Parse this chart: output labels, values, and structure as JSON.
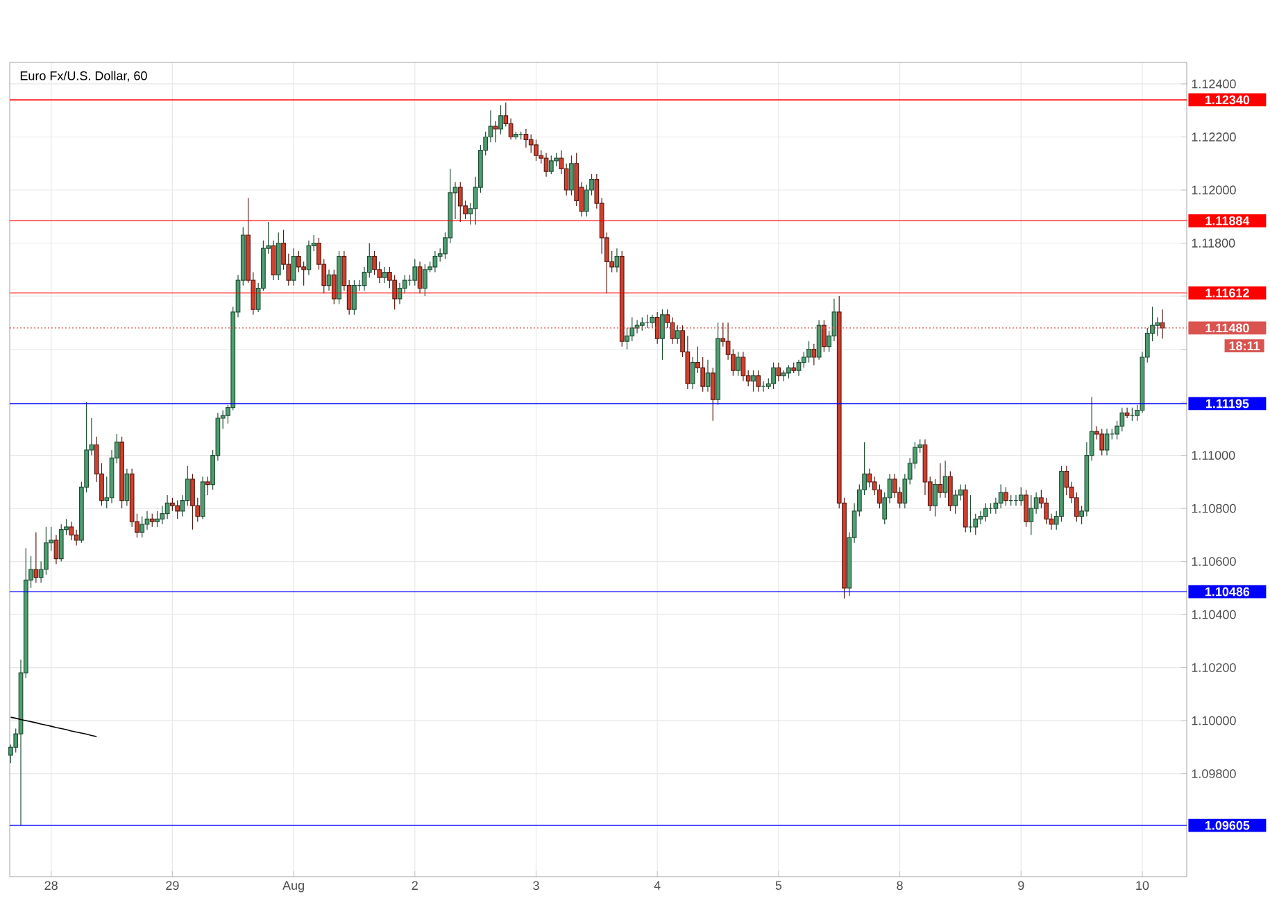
{
  "chart_data": {
    "type": "candlestick",
    "title": "Euro Fx/U.S. Dollar, 60",
    "categories": [
      null,
      null,
      null,
      null,
      null,
      null,
      null,
      null,
      "28",
      null,
      null,
      null,
      null,
      null,
      null,
      null,
      null,
      null,
      null,
      null,
      null,
      null,
      null,
      null,
      null,
      null,
      null,
      null,
      null,
      null,
      null,
      null,
      "29",
      null,
      null,
      null,
      null,
      null,
      null,
      null,
      null,
      null,
      null,
      null,
      null,
      null,
      null,
      null,
      null,
      null,
      null,
      null,
      null,
      null,
      null,
      null,
      "Aug",
      null,
      null,
      null,
      null,
      null,
      null,
      null,
      null,
      null,
      null,
      null,
      null,
      null,
      null,
      null,
      null,
      null,
      null,
      null,
      null,
      null,
      null,
      null,
      "2",
      null,
      null,
      null,
      null,
      null,
      null,
      null,
      null,
      null,
      null,
      null,
      null,
      null,
      null,
      null,
      null,
      null,
      null,
      null,
      null,
      null,
      null,
      null,
      "3",
      null,
      null,
      null,
      null,
      null,
      null,
      null,
      null,
      null,
      null,
      null,
      null,
      null,
      null,
      null,
      null,
      null,
      null,
      null,
      null,
      null,
      null,
      null,
      "4",
      null,
      null,
      null,
      null,
      null,
      null,
      null,
      null,
      null,
      null,
      null,
      null,
      null,
      null,
      null,
      null,
      null,
      null,
      null,
      null,
      null,
      null,
      null,
      "5",
      null,
      null,
      null,
      null,
      null,
      null,
      null,
      null,
      null,
      null,
      null,
      null,
      null,
      null,
      null,
      null,
      null,
      null,
      null,
      null,
      null,
      null,
      null,
      "8",
      null,
      null,
      null,
      null,
      null,
      null,
      null,
      null,
      null,
      null,
      null,
      null,
      null,
      null,
      null,
      null,
      null,
      null,
      null,
      null,
      null,
      null,
      null,
      "9",
      null,
      null,
      null,
      null,
      null,
      null,
      null,
      null,
      null,
      null,
      null,
      null,
      null,
      null,
      null,
      null,
      null,
      null,
      null,
      null,
      null,
      null,
      null,
      "10",
      null,
      null,
      null,
      null
    ],
    "ohlc": [
      [
        1.0987,
        1.0991,
        1.0984,
        1.099
      ],
      [
        1.099,
        1.0997,
        1.0988,
        1.0995
      ],
      [
        1.0995,
        1.1023,
        1.09605,
        1.1018
      ],
      [
        1.1018,
        1.1065,
        1.1016,
        1.1053
      ],
      [
        1.1053,
        1.1062,
        1.105,
        1.1057
      ],
      [
        1.1057,
        1.1071,
        1.1052,
        1.1054
      ],
      [
        1.1054,
        1.106,
        1.1052,
        1.1057
      ],
      [
        1.1057,
        1.1073,
        1.1055,
        1.1067
      ],
      [
        1.1067,
        1.1073,
        1.1064,
        1.1068
      ],
      [
        1.1068,
        1.107,
        1.1059,
        1.1061
      ],
      [
        1.1061,
        1.1074,
        1.106,
        1.1072
      ],
      [
        1.1072,
        1.1076,
        1.107,
        1.1073
      ],
      [
        1.1073,
        1.1075,
        1.1068,
        1.107
      ],
      [
        1.107,
        1.1072,
        1.1066,
        1.1068
      ],
      [
        1.1068,
        1.109,
        1.1067,
        1.1088
      ],
      [
        1.1088,
        1.112,
        1.1086,
        1.1102
      ],
      [
        1.1102,
        1.1114,
        1.11,
        1.1104
      ],
      [
        1.1104,
        1.1107,
        1.109,
        1.1093
      ],
      [
        1.1093,
        1.1097,
        1.1081,
        1.1083
      ],
      [
        1.1083,
        1.1092,
        1.108,
        1.1084
      ],
      [
        1.1084,
        1.1102,
        1.1082,
        1.1099
      ],
      [
        1.1099,
        1.1108,
        1.1097,
        1.1105
      ],
      [
        1.1105,
        1.1107,
        1.108,
        1.1083
      ],
      [
        1.1083,
        1.1095,
        1.1081,
        1.1093
      ],
      [
        1.1093,
        1.1095,
        1.1073,
        1.1075
      ],
      [
        1.1075,
        1.1078,
        1.1069,
        1.1071
      ],
      [
        1.1071,
        1.1077,
        1.1069,
        1.1074
      ],
      [
        1.1074,
        1.1079,
        1.1072,
        1.1076
      ],
      [
        1.1076,
        1.1078,
        1.1073,
        1.1075
      ],
      [
        1.1075,
        1.1079,
        1.1073,
        1.1076
      ],
      [
        1.1076,
        1.1081,
        1.1074,
        1.1078
      ],
      [
        1.1078,
        1.1085,
        1.1076,
        1.1082
      ],
      [
        1.1082,
        1.1084,
        1.1079,
        1.1081
      ],
      [
        1.1081,
        1.1083,
        1.1076,
        1.1079
      ],
      [
        1.1079,
        1.1085,
        1.1077,
        1.1083
      ],
      [
        1.1083,
        1.1096,
        1.1081,
        1.1091
      ],
      [
        1.1091,
        1.1093,
        1.1072,
        1.1081
      ],
      [
        1.1081,
        1.1084,
        1.1075,
        1.1077
      ],
      [
        1.1077,
        1.1092,
        1.1076,
        1.109
      ],
      [
        1.109,
        1.1092,
        1.1085,
        1.1089
      ],
      [
        1.1089,
        1.1102,
        1.1087,
        1.11
      ],
      [
        1.11,
        1.1116,
        1.1098,
        1.1114
      ],
      [
        1.1114,
        1.1117,
        1.111,
        1.1115
      ],
      [
        1.1115,
        1.1119,
        1.1112,
        1.1118
      ],
      [
        1.1118,
        1.1156,
        1.1117,
        1.1154
      ],
      [
        1.1154,
        1.1168,
        1.1152,
        1.1166
      ],
      [
        1.1166,
        1.1186,
        1.1164,
        1.1183
      ],
      [
        1.1183,
        1.1197,
        1.1165,
        1.1166
      ],
      [
        1.1166,
        1.1169,
        1.1153,
        1.1155
      ],
      [
        1.1155,
        1.1165,
        1.1154,
        1.1163
      ],
      [
        1.1163,
        1.1181,
        1.1162,
        1.1178
      ],
      [
        1.1178,
        1.1188,
        1.1176,
        1.1179
      ],
      [
        1.1179,
        1.1181,
        1.1166,
        1.1168
      ],
      [
        1.1168,
        1.1184,
        1.1166,
        1.118
      ],
      [
        1.118,
        1.1185,
        1.117,
        1.1172
      ],
      [
        1.1172,
        1.1176,
        1.1164,
        1.1166
      ],
      [
        1.1166,
        1.1178,
        1.1164,
        1.1175
      ],
      [
        1.1175,
        1.1177,
        1.1169,
        1.1171
      ],
      [
        1.1171,
        1.1173,
        1.1164,
        1.117
      ],
      [
        1.117,
        1.1181,
        1.1168,
        1.1179
      ],
      [
        1.1179,
        1.1183,
        1.1177,
        1.118
      ],
      [
        1.118,
        1.1182,
        1.117,
        1.1172
      ],
      [
        1.1172,
        1.1174,
        1.1161,
        1.1164
      ],
      [
        1.1164,
        1.117,
        1.1162,
        1.1168
      ],
      [
        1.1168,
        1.117,
        1.1157,
        1.1159
      ],
      [
        1.1159,
        1.1177,
        1.1157,
        1.1175
      ],
      [
        1.1175,
        1.1177,
        1.1162,
        1.1164
      ],
      [
        1.1164,
        1.1166,
        1.1153,
        1.1155
      ],
      [
        1.1155,
        1.1166,
        1.1153,
        1.1164
      ],
      [
        1.1164,
        1.1166,
        1.1162,
        1.1164
      ],
      [
        1.1164,
        1.1171,
        1.1162,
        1.1169
      ],
      [
        1.1169,
        1.118,
        1.1167,
        1.1175
      ],
      [
        1.1175,
        1.1177,
        1.1168,
        1.117
      ],
      [
        1.117,
        1.1173,
        1.1165,
        1.1167
      ],
      [
        1.1167,
        1.1171,
        1.1165,
        1.1169
      ],
      [
        1.1169,
        1.1171,
        1.1163,
        1.1166
      ],
      [
        1.1166,
        1.1168,
        1.1155,
        1.1159
      ],
      [
        1.1159,
        1.1165,
        1.1157,
        1.1163
      ],
      [
        1.1163,
        1.1168,
        1.1161,
        1.1166
      ],
      [
        1.1166,
        1.1168,
        1.1164,
        1.1166
      ],
      [
        1.1166,
        1.1174,
        1.1164,
        1.1171
      ],
      [
        1.1171,
        1.1173,
        1.1161,
        1.1163
      ],
      [
        1.1163,
        1.1172,
        1.116,
        1.117
      ],
      [
        1.117,
        1.1173,
        1.1169,
        1.1171
      ],
      [
        1.1171,
        1.1177,
        1.1169,
        1.1175
      ],
      [
        1.1175,
        1.1178,
        1.1173,
        1.1176
      ],
      [
        1.1176,
        1.1184,
        1.1174,
        1.1182
      ],
      [
        1.1182,
        1.1208,
        1.118,
        1.1199
      ],
      [
        1.1199,
        1.1203,
        1.1189,
        1.1201
      ],
      [
        1.1201,
        1.1203,
        1.1188,
        1.1194
      ],
      [
        1.1194,
        1.1196,
        1.1189,
        1.1191
      ],
      [
        1.1191,
        1.1195,
        1.1187,
        1.1193
      ],
      [
        1.1193,
        1.1205,
        1.1187,
        1.1201
      ],
      [
        1.1201,
        1.1217,
        1.1199,
        1.1215
      ],
      [
        1.1215,
        1.1222,
        1.1213,
        1.122
      ],
      [
        1.122,
        1.123,
        1.1218,
        1.1224
      ],
      [
        1.1224,
        1.1226,
        1.1218,
        1.1223
      ],
      [
        1.1223,
        1.1232,
        1.1221,
        1.1228
      ],
      [
        1.1228,
        1.1233,
        1.1224,
        1.1225
      ],
      [
        1.1225,
        1.1227,
        1.1219,
        1.122
      ],
      [
        1.122,
        1.1222,
        1.1219,
        1.1221
      ],
      [
        1.1221,
        1.1222,
        1.1219,
        1.1221
      ],
      [
        1.1221,
        1.1223,
        1.1216,
        1.1219
      ],
      [
        1.1219,
        1.1221,
        1.1214,
        1.1217
      ],
      [
        1.1217,
        1.1219,
        1.1211,
        1.1213
      ],
      [
        1.1213,
        1.1215,
        1.121,
        1.1212
      ],
      [
        1.1212,
        1.1214,
        1.1205,
        1.1207
      ],
      [
        1.1207,
        1.1213,
        1.1206,
        1.1211
      ],
      [
        1.1211,
        1.1214,
        1.1209,
        1.1212
      ],
      [
        1.1212,
        1.1215,
        1.1206,
        1.1208
      ],
      [
        1.1208,
        1.121,
        1.1198,
        1.12
      ],
      [
        1.12,
        1.1213,
        1.1198,
        1.121
      ],
      [
        1.121,
        1.1214,
        1.1194,
        1.1196
      ],
      [
        1.1201,
        1.1203,
        1.119,
        1.1192
      ],
      [
        1.1192,
        1.1202,
        1.119,
        1.12
      ],
      [
        1.12,
        1.1206,
        1.1198,
        1.1204
      ],
      [
        1.1204,
        1.1206,
        1.1193,
        1.1195
      ],
      [
        1.1195,
        1.1197,
        1.1176,
        1.1182
      ],
      [
        1.1182,
        1.1184,
        1.1161,
        1.1173
      ],
      [
        1.1173,
        1.1177,
        1.1169,
        1.1171
      ],
      [
        1.1171,
        1.1178,
        1.1169,
        1.1175
      ],
      [
        1.1175,
        1.1177,
        1.1141,
        1.1143
      ],
      [
        1.1143,
        1.1148,
        1.114,
        1.1145
      ],
      [
        1.1145,
        1.1152,
        1.1143,
        1.1148
      ],
      [
        1.1148,
        1.1151,
        1.1146,
        1.1149
      ],
      [
        1.1149,
        1.1152,
        1.1147,
        1.115
      ],
      [
        1.115,
        1.1153,
        1.1148,
        1.115
      ],
      [
        1.115,
        1.1153,
        1.1148,
        1.1152
      ],
      [
        1.1152,
        1.1154,
        1.1142,
        1.1144
      ],
      [
        1.1144,
        1.1155,
        1.1136,
        1.1153
      ],
      [
        1.1153,
        1.1155,
        1.1148,
        1.115
      ],
      [
        1.115,
        1.1152,
        1.1142,
        1.1144
      ],
      [
        1.1144,
        1.1149,
        1.1142,
        1.1147
      ],
      [
        1.1147,
        1.1149,
        1.1137,
        1.1139
      ],
      [
        1.1139,
        1.1145,
        1.1125,
        1.1127
      ],
      [
        1.1127,
        1.1137,
        1.1125,
        1.1135
      ],
      [
        1.1135,
        1.1141,
        1.1131,
        1.1133
      ],
      [
        1.1133,
        1.1137,
        1.1124,
        1.1126
      ],
      [
        1.1126,
        1.1136,
        1.1124,
        1.1131
      ],
      [
        1.1131,
        1.1133,
        1.1113,
        1.1121
      ],
      [
        1.1121,
        1.115,
        1.1119,
        1.1144
      ],
      [
        1.1144,
        1.115,
        1.1141,
        1.1143
      ],
      [
        1.1143,
        1.115,
        1.1136,
        1.1138
      ],
      [
        1.1138,
        1.114,
        1.113,
        1.1132
      ],
      [
        1.1132,
        1.1139,
        1.113,
        1.1137
      ],
      [
        1.1137,
        1.1139,
        1.1128,
        1.113
      ],
      [
        1.113,
        1.1132,
        1.1126,
        1.1128
      ],
      [
        1.1128,
        1.1132,
        1.1124,
        1.113
      ],
      [
        1.113,
        1.1132,
        1.1124,
        1.1126
      ],
      [
        1.1126,
        1.1128,
        1.1124,
        1.1126
      ],
      [
        1.1126,
        1.1129,
        1.1125,
        1.1127
      ],
      [
        1.1127,
        1.1135,
        1.1125,
        1.1133
      ],
      [
        1.1133,
        1.1135,
        1.1128,
        1.113
      ],
      [
        1.113,
        1.1132,
        1.1128,
        1.1131
      ],
      [
        1.1131,
        1.1134,
        1.1129,
        1.1133
      ],
      [
        1.1133,
        1.1135,
        1.1131,
        1.1132
      ],
      [
        1.1132,
        1.1136,
        1.113,
        1.1135
      ],
      [
        1.1135,
        1.1139,
        1.1133,
        1.1137
      ],
      [
        1.1137,
        1.1143,
        1.1135,
        1.114
      ],
      [
        1.114,
        1.1142,
        1.1134,
        1.1137
      ],
      [
        1.1137,
        1.1151,
        1.1136,
        1.1149
      ],
      [
        1.1149,
        1.1151,
        1.1139,
        1.1141
      ],
      [
        1.1141,
        1.1147,
        1.1139,
        1.1145
      ],
      [
        1.1145,
        1.1159,
        1.1143,
        1.1154
      ],
      [
        1.1154,
        1.116,
        1.108,
        1.1082
      ],
      [
        1.1082,
        1.1084,
        1.1046,
        1.105
      ],
      [
        1.105,
        1.1071,
        1.1047,
        1.1069
      ],
      [
        1.1069,
        1.1082,
        1.1067,
        1.1079
      ],
      [
        1.1079,
        1.1089,
        1.1077,
        1.1087
      ],
      [
        1.1087,
        1.1105,
        1.1085,
        1.1093
      ],
      [
        1.1093,
        1.1095,
        1.1088,
        1.109
      ],
      [
        1.109,
        1.1092,
        1.1085,
        1.1087
      ],
      [
        1.1087,
        1.1089,
        1.108,
        1.1082
      ],
      [
        1.1076,
        1.1086,
        1.1074,
        1.1084
      ],
      [
        1.1084,
        1.1093,
        1.1082,
        1.1091
      ],
      [
        1.1091,
        1.1093,
        1.1084,
        1.1086
      ],
      [
        1.1086,
        1.1088,
        1.108,
        1.1082
      ],
      [
        1.1082,
        1.1093,
        1.108,
        1.1091
      ],
      [
        1.1091,
        1.1099,
        1.1089,
        1.1097
      ],
      [
        1.1097,
        1.1105,
        1.1095,
        1.1103
      ],
      [
        1.1103,
        1.1106,
        1.1101,
        1.1104
      ],
      [
        1.1104,
        1.1106,
        1.1085,
        1.109
      ],
      [
        1.109,
        1.1092,
        1.1079,
        1.1081
      ],
      [
        1.1081,
        1.1091,
        1.1077,
        1.1089
      ],
      [
        1.1089,
        1.1097,
        1.1084,
        1.1086
      ],
      [
        1.1086,
        1.1098,
        1.1084,
        1.1092
      ],
      [
        1.1092,
        1.1094,
        1.1079,
        1.1081
      ],
      [
        1.1081,
        1.1087,
        1.1078,
        1.1085
      ],
      [
        1.1085,
        1.1089,
        1.1083,
        1.1087
      ],
      [
        1.1087,
        1.1089,
        1.1071,
        1.1073
      ],
      [
        1.1073,
        1.1085,
        1.1071,
        1.1073
      ],
      [
        1.1073,
        1.1078,
        1.107,
        1.1076
      ],
      [
        1.1076,
        1.1079,
        1.1074,
        1.1077
      ],
      [
        1.1077,
        1.1082,
        1.1075,
        1.108
      ],
      [
        1.108,
        1.1082,
        1.1078,
        1.108
      ],
      [
        1.108,
        1.1084,
        1.1078,
        1.1082
      ],
      [
        1.1082,
        1.1089,
        1.108,
        1.1086
      ],
      [
        1.1086,
        1.1088,
        1.1081,
        1.1083
      ],
      [
        1.1083,
        1.1085,
        1.1081,
        1.1083
      ],
      [
        1.1083,
        1.1085,
        1.1081,
        1.1083
      ],
      [
        1.1083,
        1.1088,
        1.1081,
        1.1085
      ],
      [
        1.1085,
        1.1087,
        1.1073,
        1.1075
      ],
      [
        1.1075,
        1.1085,
        1.107,
        1.108
      ],
      [
        1.108,
        1.1086,
        1.1078,
        1.1084
      ],
      [
        1.1084,
        1.1087,
        1.108,
        1.1082
      ],
      [
        1.1082,
        1.1084,
        1.1074,
        1.1076
      ],
      [
        1.1076,
        1.1078,
        1.1072,
        1.1074
      ],
      [
        1.1074,
        1.1079,
        1.1072,
        1.1077
      ],
      [
        1.1077,
        1.1096,
        1.1075,
        1.1094
      ],
      [
        1.1094,
        1.1096,
        1.1085,
        1.1088
      ],
      [
        1.1088,
        1.109,
        1.1082,
        1.1084
      ],
      [
        1.1084,
        1.1086,
        1.1075,
        1.1077
      ],
      [
        1.1077,
        1.1081,
        1.1074,
        1.1079
      ],
      [
        1.1079,
        1.1105,
        1.1077,
        1.11
      ],
      [
        1.11,
        1.1122,
        1.1098,
        1.1109
      ],
      [
        1.1109,
        1.1111,
        1.1106,
        1.1108
      ],
      [
        1.1108,
        1.111,
        1.11,
        1.1102
      ],
      [
        1.1102,
        1.111,
        1.11,
        1.1108
      ],
      [
        1.1108,
        1.111,
        1.1106,
        1.1108
      ],
      [
        1.1108,
        1.1113,
        1.1106,
        1.1111
      ],
      [
        1.1111,
        1.1118,
        1.1109,
        1.1116
      ],
      [
        1.1116,
        1.1118,
        1.1114,
        1.1115
      ],
      [
        1.1115,
        1.1118,
        1.1113,
        1.1115
      ],
      [
        1.1115,
        1.1119,
        1.1113,
        1.1117
      ],
      [
        1.1117,
        1.1139,
        1.1116,
        1.1137
      ],
      [
        1.1137,
        1.1148,
        1.1135,
        1.1146
      ],
      [
        1.1146,
        1.1156,
        1.1143,
        1.1149
      ],
      [
        1.1149,
        1.1152,
        1.1145,
        1.115
      ],
      [
        1.115,
        1.1155,
        1.1144,
        1.1148
      ]
    ],
    "series": [
      {
        "type": "line",
        "values": [
          1.10013,
          1.10009,
          1.10004,
          1.1,
          1.09996,
          1.09992,
          1.09987,
          1.09983,
          1.09979,
          1.09974,
          1.0997,
          1.09966,
          1.09961,
          1.09957,
          1.09953,
          1.09949,
          1.09944,
          1.0994,
          null,
          null,
          null,
          null,
          null,
          null,
          null,
          null,
          null,
          null,
          null,
          null,
          null,
          null,
          null,
          null,
          null,
          null,
          null,
          null,
          null,
          null,
          null,
          null,
          null,
          null,
          null,
          null,
          null,
          null,
          null,
          null,
          null,
          null,
          null,
          null,
          null,
          null,
          null,
          null,
          null,
          null,
          null,
          null,
          null,
          null,
          null,
          null,
          null,
          null,
          null,
          null,
          null,
          null,
          null,
          null,
          null,
          null,
          null,
          null,
          null,
          null,
          null,
          null,
          null,
          null,
          null,
          null,
          null,
          null,
          null,
          null,
          null,
          null,
          null,
          null,
          null,
          null,
          null,
          null,
          null,
          null,
          null,
          null,
          null,
          null,
          null,
          null,
          null,
          null,
          null,
          null,
          null,
          null,
          null,
          null,
          null,
          null,
          null,
          null,
          null,
          null,
          null,
          null,
          null,
          null,
          null,
          null,
          null,
          null,
          null,
          null,
          null,
          null,
          null,
          null,
          null,
          null,
          null,
          null,
          null,
          null,
          null,
          null,
          null,
          null,
          null,
          null,
          null,
          null,
          null,
          null,
          null,
          null,
          null,
          null,
          null,
          null,
          null,
          null,
          null,
          null,
          null,
          null,
          null,
          null,
          null,
          null,
          null,
          null,
          null,
          null,
          null,
          null,
          null,
          null,
          null,
          null,
          null,
          null,
          null,
          null,
          null,
          null,
          null,
          null,
          null,
          null,
          null,
          null,
          null,
          null,
          null,
          null,
          null,
          null,
          null,
          null,
          null,
          null,
          null,
          null,
          null,
          null,
          null,
          null,
          null,
          null,
          null,
          null,
          null,
          null,
          null,
          null,
          null,
          null,
          null,
          null,
          null,
          null,
          null,
          null,
          null,
          null,
          null,
          null,
          null,
          null,
          null,
          null,
          null
        ],
        "color": "#000000"
      }
    ],
    "ylim": [
      1.09412,
      1.12481
    ],
    "yticks": [
      {
        "value": 1.098,
        "label": "1.09800"
      },
      {
        "value": 1.1,
        "label": "1.10000"
      },
      {
        "value": 1.102,
        "label": "1.10200"
      },
      {
        "value": 1.104,
        "label": "1.10400"
      },
      {
        "value": 1.106,
        "label": "1.10600"
      },
      {
        "value": 1.108,
        "label": "1.10800"
      },
      {
        "value": 1.11,
        "label": "1.11000"
      },
      {
        "value": 1.112,
        "label": null
      },
      {
        "value": 1.114,
        "label": null
      },
      {
        "value": 1.116,
        "label": null
      },
      {
        "value": 1.118,
        "label": "1.11800"
      },
      {
        "value": 1.12,
        "label": "1.12000"
      },
      {
        "value": 1.122,
        "label": "1.12200"
      },
      {
        "value": 1.124,
        "label": "1.12400"
      }
    ],
    "ref_lines": [
      {
        "axis": "y",
        "value": 1.1234,
        "label": "1.12340",
        "color": "#ff0000"
      },
      {
        "axis": "y",
        "value": 1.11884,
        "label": "1.11884",
        "color": "#ff0000"
      },
      {
        "axis": "y",
        "value": 1.11612,
        "label": "1.11612",
        "color": "#ff0000"
      },
      {
        "axis": "y",
        "value": 1.1148,
        "label": "1.11480",
        "color": "#d9534f",
        "line_style": "dotted"
      },
      {
        "axis": "y",
        "value": 1.11195,
        "label": "1.11195",
        "color": "#0000ff"
      },
      {
        "axis": "y",
        "value": 1.10486,
        "label": "1.10486",
        "color": "#0000ff"
      },
      {
        "axis": "y",
        "value": 1.09605,
        "label": "1.09605",
        "color": "#0000ff"
      }
    ],
    "annotations": [
      "18:11"
    ],
    "grid": true
  }
}
